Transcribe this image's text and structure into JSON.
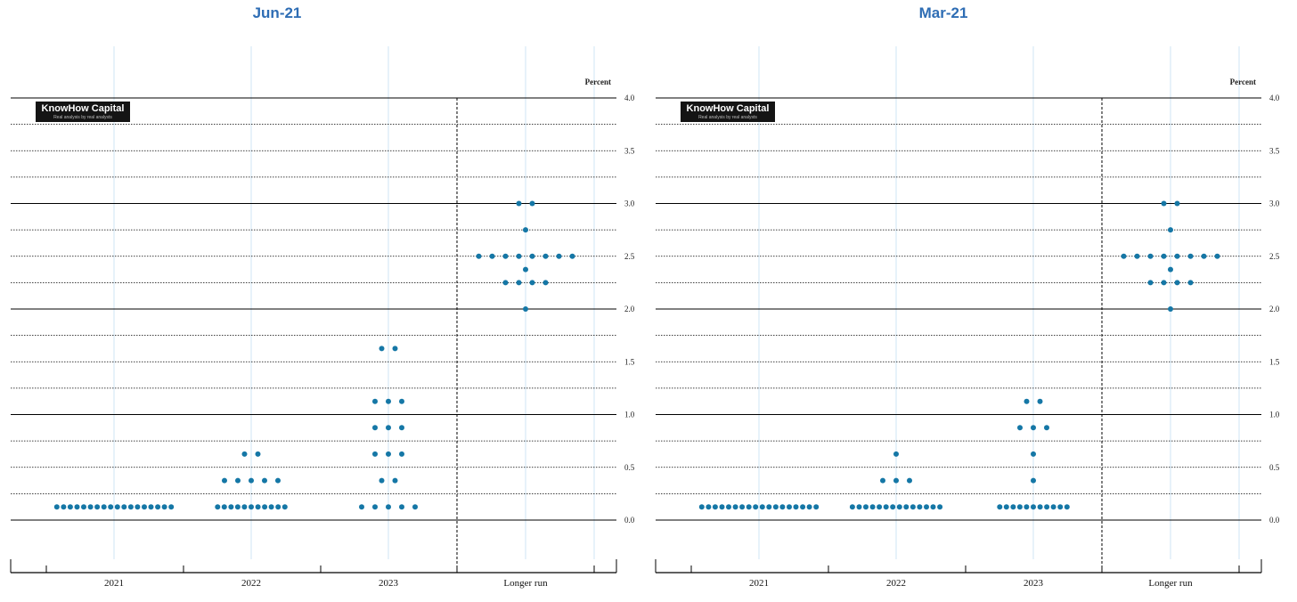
{
  "colors": {
    "dot": "#1577a6",
    "title": "#2e6db4",
    "gridline": "#000000",
    "vline": "#cfe4f5"
  },
  "watermark": {
    "title": "KnowHow Capital",
    "subtitle": "Real analysis by real analysts"
  },
  "chart_data": [
    {
      "type": "scatter",
      "title": "Jun-21",
      "unit_label": "Percent",
      "categories": [
        "2021",
        "2022",
        "2023",
        "Longer run"
      ],
      "y_ticks": [
        "4.0",
        "3.5",
        "3.0",
        "2.5",
        "2.0",
        "1.5",
        "1.0",
        "0.5",
        "0.0"
      ],
      "ylim": [
        -0.25,
        4.25
      ],
      "legend": "none",
      "dot_counts": [
        {
          "category": "2021",
          "rate": 0.125,
          "count": 18
        },
        {
          "category": "2022",
          "rate": 0.125,
          "count": 11
        },
        {
          "category": "2022",
          "rate": 0.375,
          "count": 5
        },
        {
          "category": "2022",
          "rate": 0.625,
          "count": 2
        },
        {
          "category": "2023",
          "rate": 0.125,
          "count": 5
        },
        {
          "category": "2023",
          "rate": 0.375,
          "count": 2
        },
        {
          "category": "2023",
          "rate": 0.625,
          "count": 3
        },
        {
          "category": "2023",
          "rate": 0.875,
          "count": 3
        },
        {
          "category": "2023",
          "rate": 1.125,
          "count": 3
        },
        {
          "category": "2023",
          "rate": 1.625,
          "count": 2
        },
        {
          "category": "Longer run",
          "rate": 2.0,
          "count": 1
        },
        {
          "category": "Longer run",
          "rate": 2.25,
          "count": 4
        },
        {
          "category": "Longer run",
          "rate": 2.375,
          "count": 1
        },
        {
          "category": "Longer run",
          "rate": 2.5,
          "count": 8
        },
        {
          "category": "Longer run",
          "rate": 2.75,
          "count": 1
        },
        {
          "category": "Longer run",
          "rate": 3.0,
          "count": 2
        }
      ]
    },
    {
      "type": "scatter",
      "title": "Mar-21",
      "unit_label": "Percent",
      "categories": [
        "2021",
        "2022",
        "2023",
        "Longer run"
      ],
      "y_ticks": [
        "4.0",
        "3.5",
        "3.0",
        "2.5",
        "2.0",
        "1.5",
        "1.0",
        "0.5",
        "0.0"
      ],
      "ylim": [
        -0.25,
        4.25
      ],
      "legend": "none",
      "dot_counts": [
        {
          "category": "2021",
          "rate": 0.125,
          "count": 18
        },
        {
          "category": "2022",
          "rate": 0.125,
          "count": 14
        },
        {
          "category": "2022",
          "rate": 0.375,
          "count": 3
        },
        {
          "category": "2022",
          "rate": 0.625,
          "count": 1
        },
        {
          "category": "2023",
          "rate": 0.125,
          "count": 11
        },
        {
          "category": "2023",
          "rate": 0.375,
          "count": 1
        },
        {
          "category": "2023",
          "rate": 0.625,
          "count": 1
        },
        {
          "category": "2023",
          "rate": 0.875,
          "count": 3
        },
        {
          "category": "2023",
          "rate": 1.125,
          "count": 2
        },
        {
          "category": "Longer run",
          "rate": 2.0,
          "count": 1
        },
        {
          "category": "Longer run",
          "rate": 2.25,
          "count": 4
        },
        {
          "category": "Longer run",
          "rate": 2.375,
          "count": 1
        },
        {
          "category": "Longer run",
          "rate": 2.5,
          "count": 8
        },
        {
          "category": "Longer run",
          "rate": 2.75,
          "count": 1
        },
        {
          "category": "Longer run",
          "rate": 3.0,
          "count": 2
        }
      ]
    }
  ]
}
